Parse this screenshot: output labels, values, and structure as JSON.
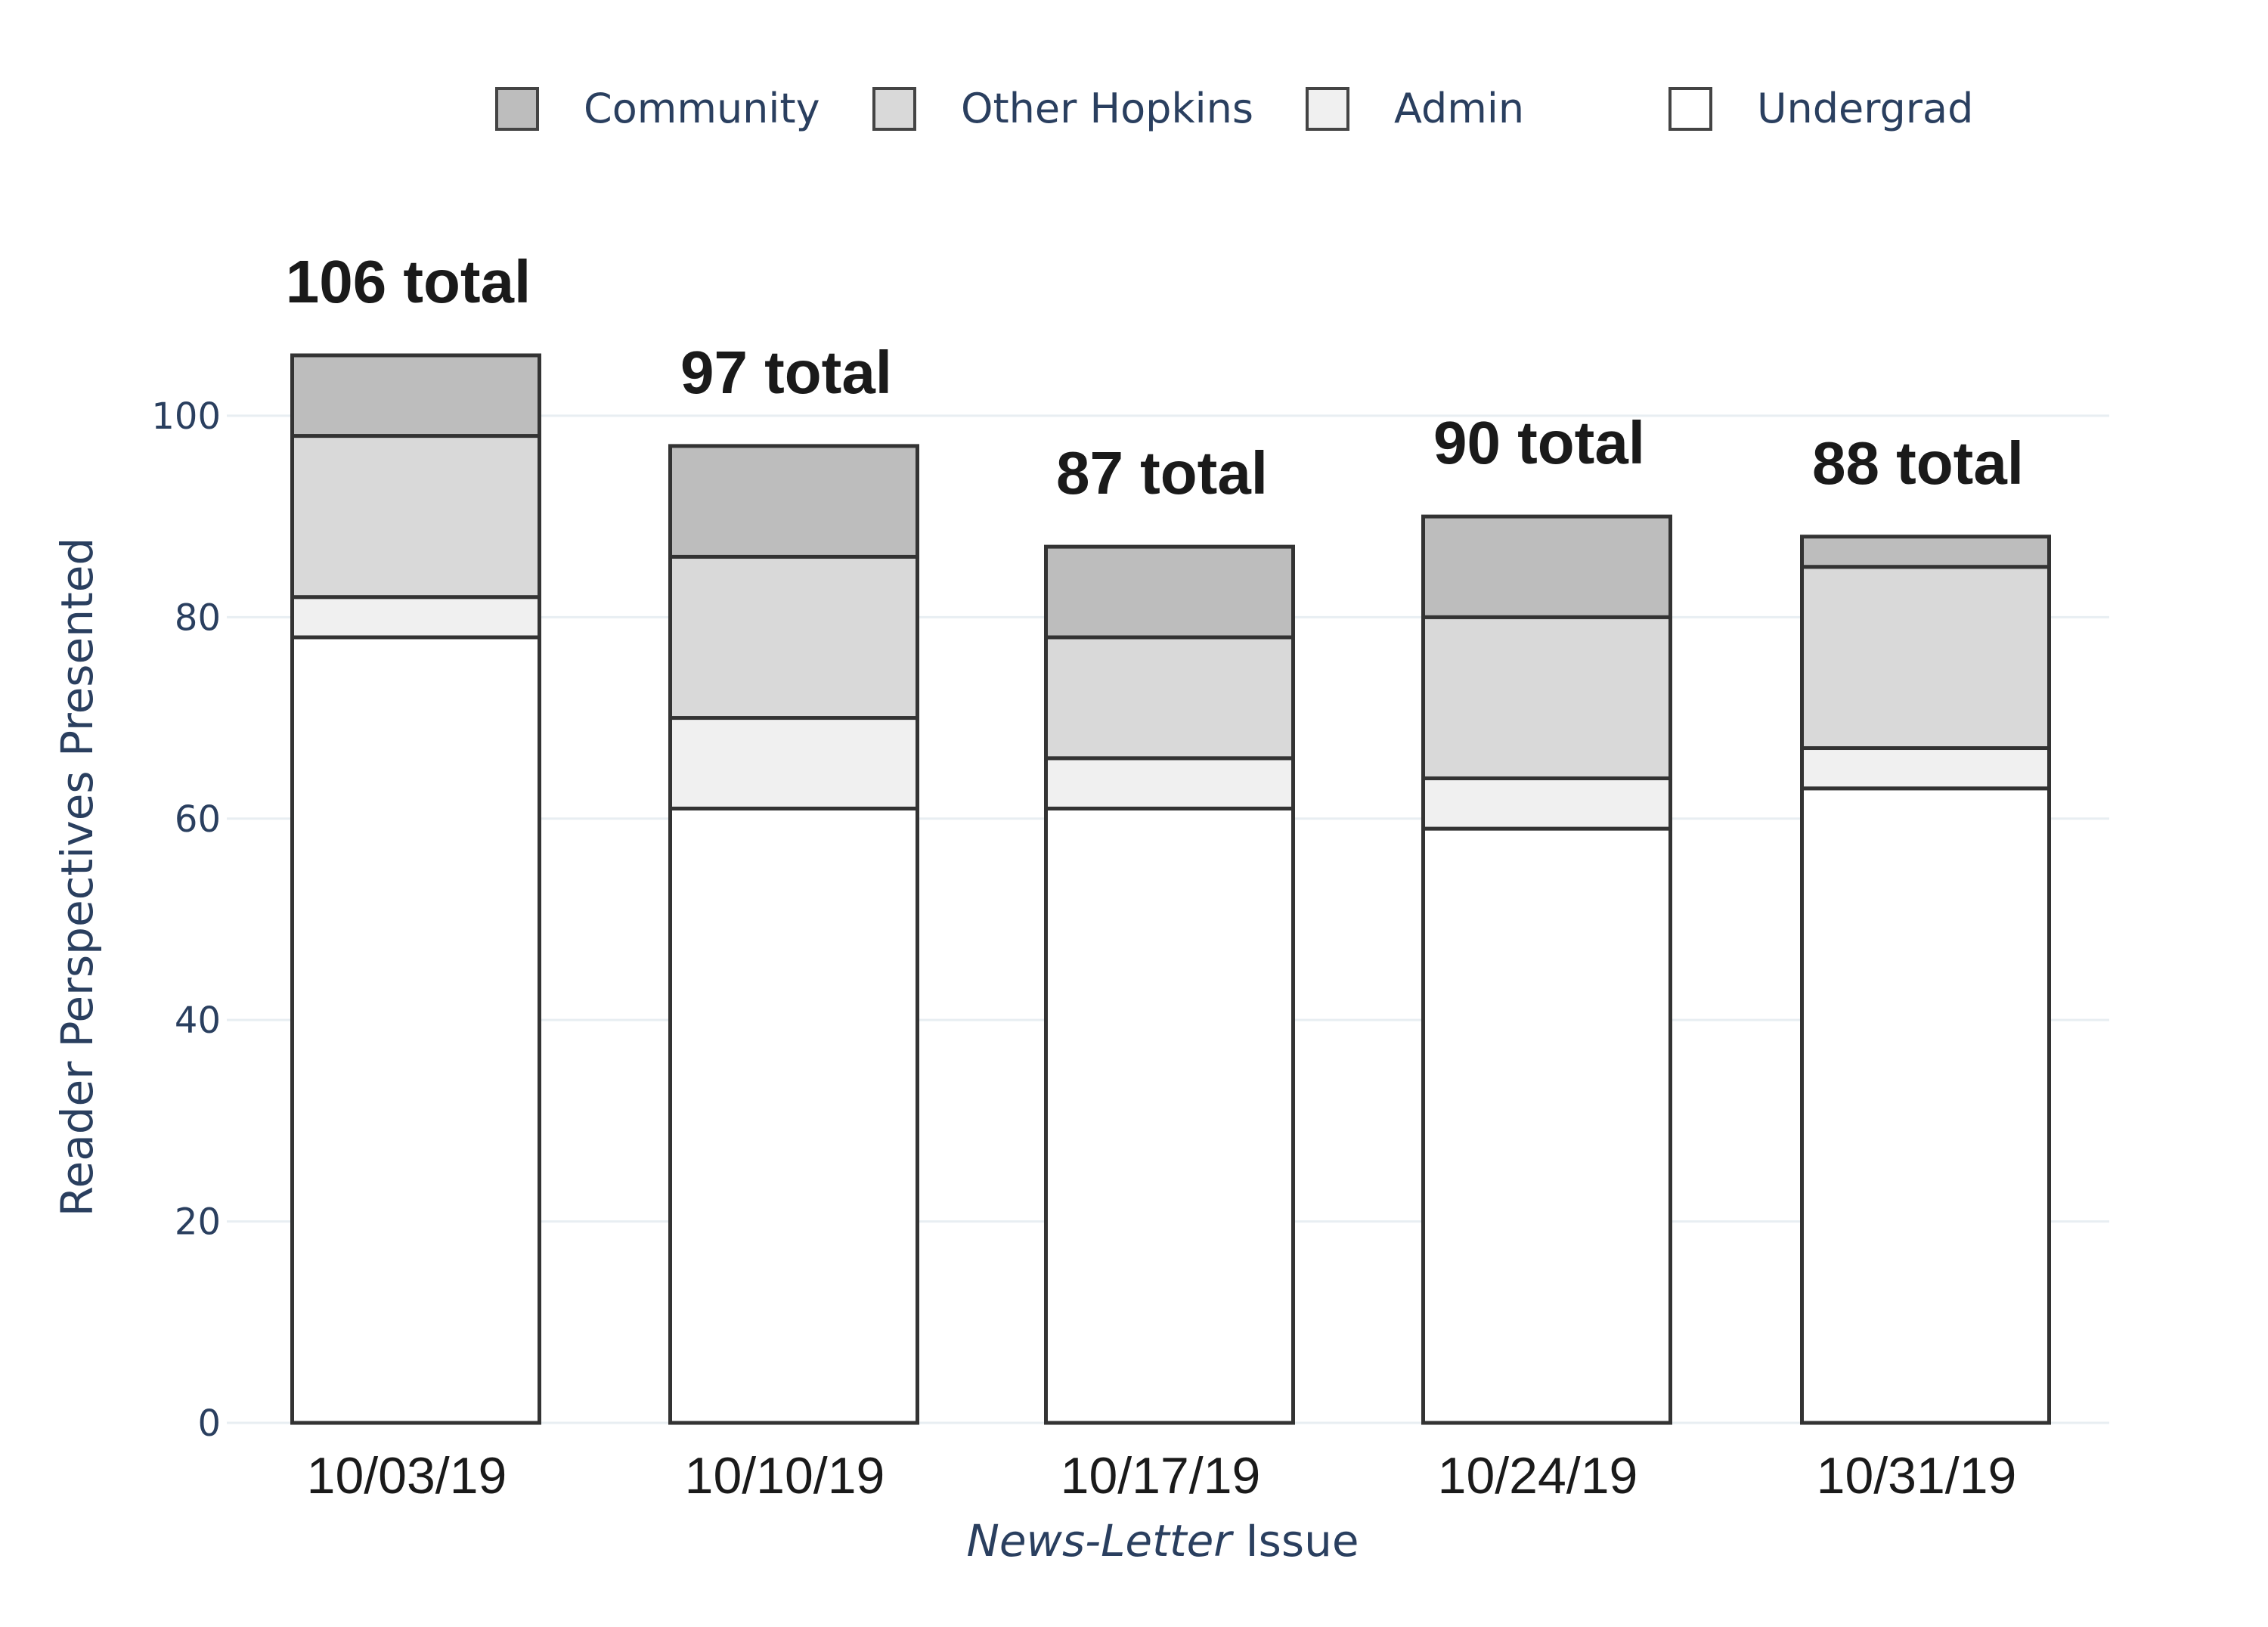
{
  "chart_data": {
    "type": "bar",
    "stacked": true,
    "categories": [
      "10/03/19",
      "10/10/19",
      "10/17/19",
      "10/24/19",
      "10/31/19"
    ],
    "series": [
      {
        "name": "Undergrad",
        "color": "#ffffff",
        "values": [
          78,
          61,
          61,
          59,
          63
        ]
      },
      {
        "name": "Admin",
        "color": "#f0f0f0",
        "values": [
          4,
          9,
          5,
          5,
          4
        ]
      },
      {
        "name": "Other Hopkins",
        "color": "#d9d9d9",
        "values": [
          16,
          16,
          12,
          16,
          18
        ]
      },
      {
        "name": "Community",
        "color": "#bdbdbd",
        "values": [
          8,
          11,
          9,
          10,
          3
        ]
      }
    ],
    "totals": [
      106,
      97,
      87,
      90,
      88
    ],
    "total_labels": [
      "106 total",
      "97 total",
      "87 total",
      "90 total",
      "88 total"
    ],
    "legend_order": [
      "Community",
      "Other Hopkins",
      "Admin",
      "Undergrad"
    ],
    "legend_position": "top",
    "ylabel": "Reader Perspectives Presented",
    "xlabel_italic": "News-Letter",
    "xlabel_rest": " Issue",
    "ylim": [
      0,
      106
    ],
    "yticks": [
      0,
      20,
      40,
      60,
      80,
      100
    ],
    "grid": true
  }
}
